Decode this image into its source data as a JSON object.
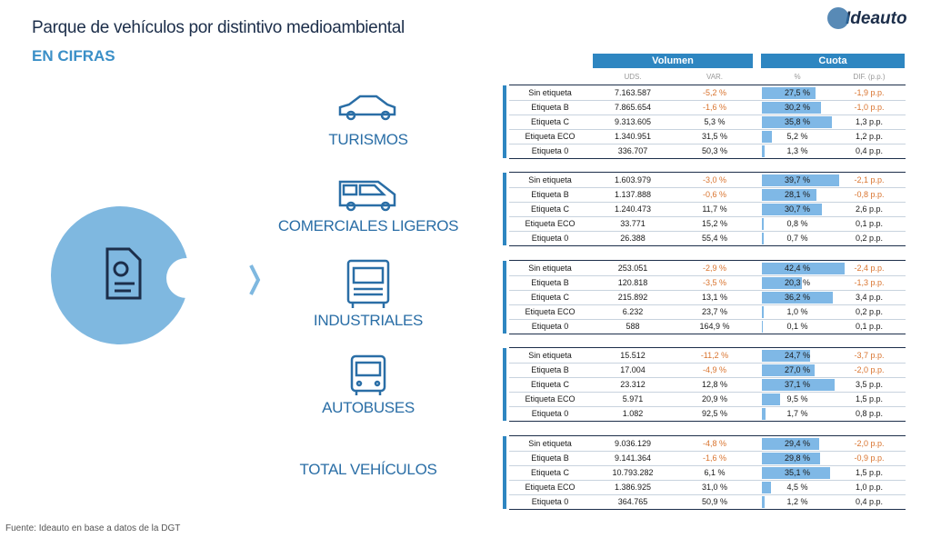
{
  "header": {
    "title": "Parque de vehículos por distintivo medioambiental",
    "subtitle": "EN CIFRAS",
    "logo": "Ideauto"
  },
  "table": {
    "groups_header": [
      "Volumen",
      "Cuota"
    ],
    "columns": [
      "UDS.",
      "VAR.",
      "%",
      "DIF. (p.p.)"
    ],
    "groups": [
      {
        "label": "TURISMOS",
        "rows": [
          {
            "label": "Sin etiqueta",
            "uds": "7.163.587",
            "var": "-5,2 %",
            "cuota": 27.5,
            "cuota_label": "27,5 %",
            "dif": "-1,9 p.p."
          },
          {
            "label": "Etiqueta B",
            "uds": "7.865.654",
            "var": "-1,6 %",
            "cuota": 30.2,
            "cuota_label": "30,2 %",
            "dif": "-1,0 p.p."
          },
          {
            "label": "Etiqueta C",
            "uds": "9.313.605",
            "var": "5,3 %",
            "cuota": 35.8,
            "cuota_label": "35,8 %",
            "dif": "1,3 p.p."
          },
          {
            "label": "Etiqueta ECO",
            "uds": "1.340.951",
            "var": "31,5 %",
            "cuota": 5.2,
            "cuota_label": "5,2 %",
            "dif": "1,2 p.p."
          },
          {
            "label": "Etiqueta 0",
            "uds": "336.707",
            "var": "50,3 %",
            "cuota": 1.3,
            "cuota_label": "1,3 %",
            "dif": "0,4 p.p."
          }
        ]
      },
      {
        "label": "COMERCIALES LIGEROS",
        "rows": [
          {
            "label": "Sin etiqueta",
            "uds": "1.603.979",
            "var": "-3,0 %",
            "cuota": 39.7,
            "cuota_label": "39,7 %",
            "dif": "-2,1 p.p."
          },
          {
            "label": "Etiqueta B",
            "uds": "1.137.888",
            "var": "-0,6 %",
            "cuota": 28.1,
            "cuota_label": "28,1 %",
            "dif": "-0,8 p.p."
          },
          {
            "label": "Etiqueta C",
            "uds": "1.240.473",
            "var": "11,7 %",
            "cuota": 30.7,
            "cuota_label": "30,7 %",
            "dif": "2,6 p.p."
          },
          {
            "label": "Etiqueta ECO",
            "uds": "33.771",
            "var": "15,2 %",
            "cuota": 0.8,
            "cuota_label": "0,8 %",
            "dif": "0,1 p.p."
          },
          {
            "label": "Etiqueta 0",
            "uds": "26.388",
            "var": "55,4 %",
            "cuota": 0.7,
            "cuota_label": "0,7 %",
            "dif": "0,2 p.p."
          }
        ]
      },
      {
        "label": "INDUSTRIALES",
        "rows": [
          {
            "label": "Sin etiqueta",
            "uds": "253.051",
            "var": "-2,9 %",
            "cuota": 42.4,
            "cuota_label": "42,4 %",
            "dif": "-2,4 p.p."
          },
          {
            "label": "Etiqueta B",
            "uds": "120.818",
            "var": "-3,5 %",
            "cuota": 20.3,
            "cuota_label": "20,3 %",
            "dif": "-1,3 p.p."
          },
          {
            "label": "Etiqueta C",
            "uds": "215.892",
            "var": "13,1 %",
            "cuota": 36.2,
            "cuota_label": "36,2 %",
            "dif": "3,4 p.p."
          },
          {
            "label": "Etiqueta ECO",
            "uds": "6.232",
            "var": "23,7 %",
            "cuota": 1,
            "cuota_label": "1,0 %",
            "dif": "0,2 p.p."
          },
          {
            "label": "Etiqueta 0",
            "uds": "588",
            "var": "164,9 %",
            "cuota": 0.1,
            "cuota_label": "0,1 %",
            "dif": "0,1 p.p."
          }
        ]
      },
      {
        "label": "AUTOBUSES",
        "rows": [
          {
            "label": "Sin etiqueta",
            "uds": "15.512",
            "var": "-11,2 %",
            "cuota": 24.7,
            "cuota_label": "24,7 %",
            "dif": "-3,7 p.p."
          },
          {
            "label": "Etiqueta B",
            "uds": "17.004",
            "var": "-4,9 %",
            "cuota": 27,
            "cuota_label": "27,0 %",
            "dif": "-2,0 p.p."
          },
          {
            "label": "Etiqueta C",
            "uds": "23.312",
            "var": "12,8 %",
            "cuota": 37.1,
            "cuota_label": "37,1 %",
            "dif": "3,5 p.p."
          },
          {
            "label": "Etiqueta ECO",
            "uds": "5.971",
            "var": "20,9 %",
            "cuota": 9.5,
            "cuota_label": "9,5 %",
            "dif": "1,5 p.p."
          },
          {
            "label": "Etiqueta 0",
            "uds": "1.082",
            "var": "92,5 %",
            "cuota": 1.7,
            "cuota_label": "1,7 %",
            "dif": "0,8 p.p."
          }
        ]
      },
      {
        "label": "TOTAL VEHÍCULOS",
        "rows": [
          {
            "label": "Sin etiqueta",
            "uds": "9.036.129",
            "var": "-4,8 %",
            "cuota": 29.4,
            "cuota_label": "29,4 %",
            "dif": "-2,0 p.p."
          },
          {
            "label": "Etiqueta B",
            "uds": "9.141.364",
            "var": "-1,6 %",
            "cuota": 29.8,
            "cuota_label": "29,8 %",
            "dif": "-0,9 p.p."
          },
          {
            "label": "Etiqueta C",
            "uds": "10.793.282",
            "var": "6,1 %",
            "cuota": 35.1,
            "cuota_label": "35,1 %",
            "dif": "1,5 p.p."
          },
          {
            "label": "Etiqueta ECO",
            "uds": "1.386.925",
            "var": "31,0 %",
            "cuota": 4.5,
            "cuota_label": "4,5 %",
            "dif": "1,0 p.p."
          },
          {
            "label": "Etiqueta 0",
            "uds": "364.765",
            "var": "50,9 %",
            "cuota": 1.2,
            "cuota_label": "1,2 %",
            "dif": "0,4 p.p."
          }
        ]
      }
    ]
  },
  "footer": "Fuente: Ideauto en base a datos de la DGT"
}
